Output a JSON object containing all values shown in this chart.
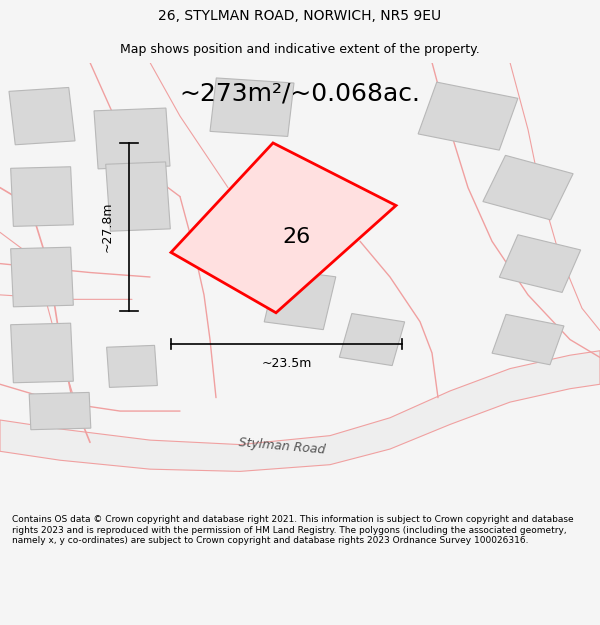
{
  "title": "26, STYLMAN ROAD, NORWICH, NR5 9EU",
  "subtitle": "Map shows position and indicative extent of the property.",
  "area_text": "~273m²/~0.068ac.",
  "label_26": "26",
  "dim_height": "~27.8m",
  "dim_width": "~23.5m",
  "road_label": "Stylman Road",
  "footer": "Contains OS data © Crown copyright and database right 2021. This information is subject to Crown copyright and database rights 2023 and is reproduced with the permission of HM Land Registry. The polygons (including the associated geometry, namely x, y co-ordinates) are subject to Crown copyright and database rights 2023 Ordnance Survey 100026316.",
  "bg_color": "#f5f5f5",
  "map_bg": "#ffffff",
  "road_color": "#f0a0a0",
  "building_fc": "#d8d8d8",
  "building_ec": "#b8b8b8",
  "plot_fc": "#ffe0e0",
  "plot_ec": "#ff0000",
  "title_fontsize": 10,
  "subtitle_fontsize": 9,
  "area_fontsize": 18,
  "footer_fontsize": 6.5
}
